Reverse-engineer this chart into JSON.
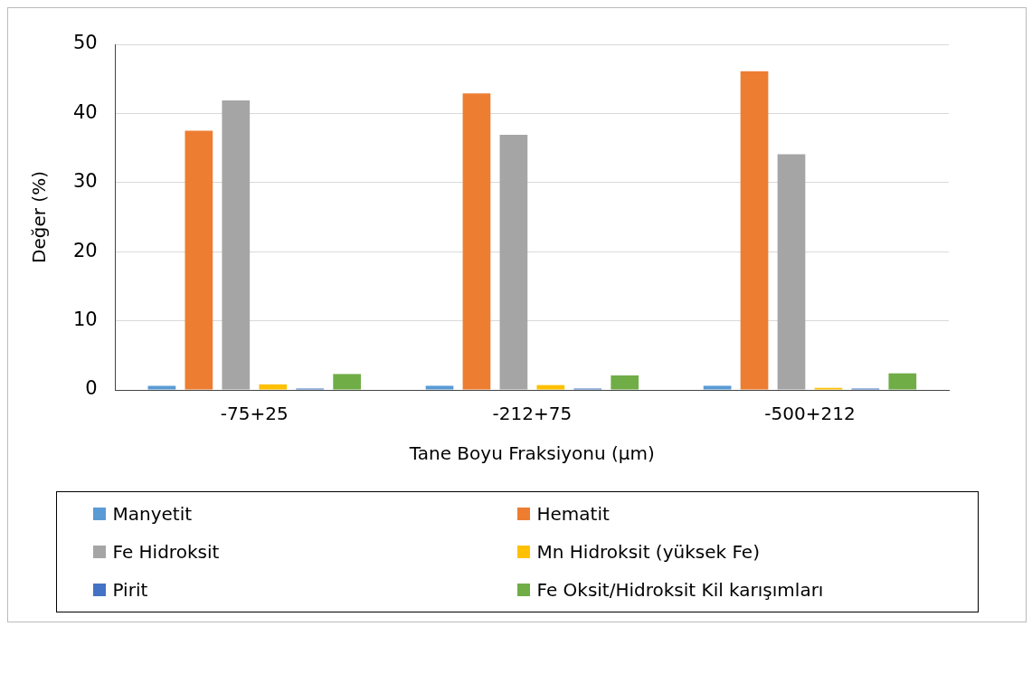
{
  "chart_data": {
    "type": "bar",
    "xlabel": "Tane Boyu Fraksiyonu (μm)",
    "ylabel": "Değer (%)",
    "categories": [
      "-75+25",
      "-212+75",
      "-500+212"
    ],
    "series": [
      {
        "name": "Manyetit",
        "color": "#5b9bd5",
        "values": [
          0.6,
          0.6,
          0.6
        ]
      },
      {
        "name": "Hematit",
        "color": "#ed7d31",
        "values": [
          37.5,
          42.9,
          46.1
        ]
      },
      {
        "name": "Fe Hidroksit",
        "color": "#a5a5a5",
        "values": [
          41.9,
          36.9,
          34.1
        ]
      },
      {
        "name": "Mn Hidroksit (yüksek Fe)",
        "color": "#ffc000",
        "values": [
          0.8,
          0.7,
          0.3
        ]
      },
      {
        "name": "Pirit",
        "color": "#4472c4",
        "values": [
          0.2,
          0.2,
          0.2
        ]
      },
      {
        "name": "Fe Oksit/Hidroksit Kil karışımları",
        "color": "#70ad47",
        "values": [
          2.3,
          2.1,
          2.4
        ]
      }
    ],
    "ylim": [
      0,
      50
    ],
    "yticks": [
      0,
      10,
      20,
      30,
      40,
      50
    ],
    "grid": "y",
    "legend": "bottom"
  }
}
